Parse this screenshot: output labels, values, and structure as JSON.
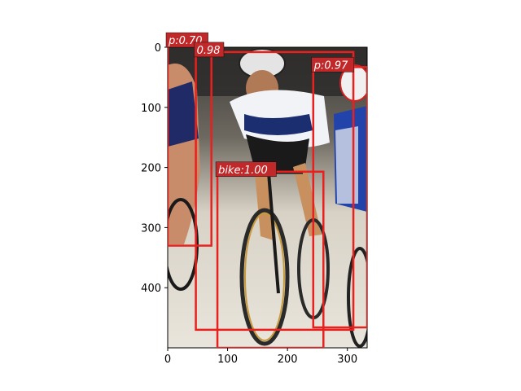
{
  "figure": {
    "image_description_note": "",
    "axes": {
      "x_ticks": [
        "0",
        "100",
        "200",
        "300"
      ],
      "y_ticks": [
        "0",
        "100",
        "200",
        "300",
        "400"
      ],
      "x_tick_values": [
        0,
        100,
        200,
        300
      ],
      "y_tick_values": [
        0,
        100,
        200,
        300,
        400
      ],
      "xlim": [
        0,
        333
      ],
      "ylim": [
        500,
        0
      ]
    },
    "colors": {
      "box": "#e8201e",
      "label_bg": "#c0282a",
      "label_text": "#ffffff"
    },
    "detections": [
      {
        "label": "p:0.70",
        "x1": 0,
        "y1": -8,
        "x2": 73,
        "y2": 330
      },
      {
        "label": "0.98",
        "x1": 47,
        "y1": 8,
        "x2": 310,
        "y2": 470
      },
      {
        "label": "p:0.97",
        "x1": 243,
        "y1": 33,
        "x2": 333,
        "y2": 466
      },
      {
        "label": "bike:1.00",
        "x1": 83,
        "y1": 207,
        "x2": 260,
        "y2": 500
      }
    ]
  }
}
